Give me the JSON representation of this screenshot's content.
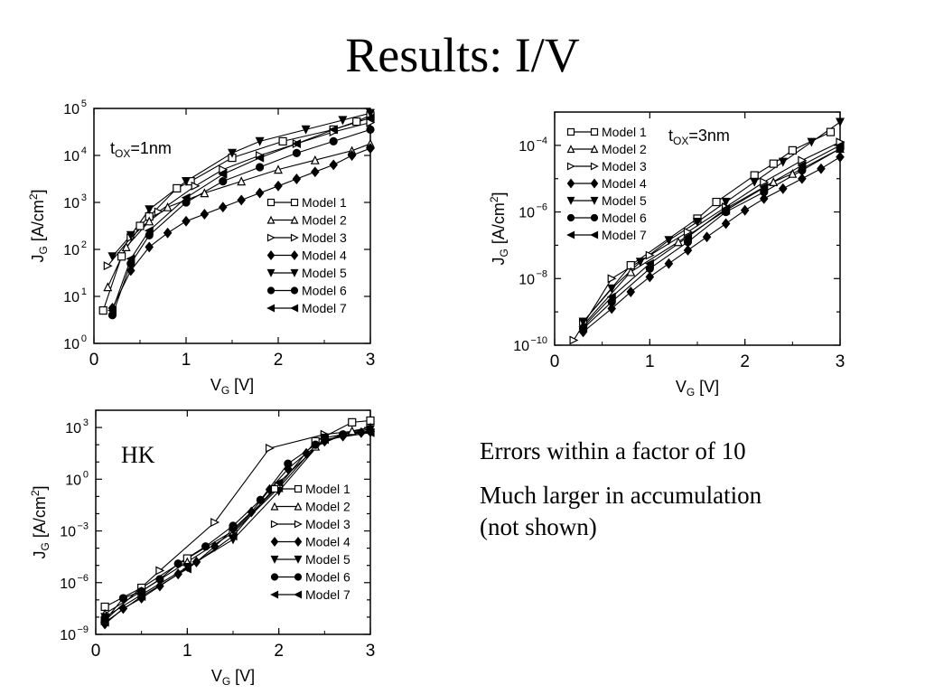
{
  "slide": {
    "title": "Results: I/V",
    "notes": [
      "Errors within a factor of 10",
      "Much larger in accumulation",
      "(not shown)"
    ]
  },
  "chart_data": [
    {
      "type": "line",
      "title": "",
      "annotation": "t_OX=1nm",
      "xlabel": "V_G [V]",
      "ylabel": "J_G [A/cm^2]",
      "xlim": [
        0,
        3
      ],
      "ylim_log10": [
        0,
        5
      ],
      "y_scale": "log",
      "x_ticks": [
        0,
        1,
        2,
        3
      ],
      "y_ticks_exp": [
        0,
        1,
        2,
        3,
        4,
        5
      ],
      "legend_position": "center-right",
      "series": [
        {
          "name": "Model 1",
          "marker": "square-open",
          "x": [
            0.1,
            0.3,
            0.5,
            0.6,
            0.9,
            1.05,
            1.5,
            2.05,
            2.6,
            2.85,
            3.0
          ],
          "y_log10": [
            0.7,
            1.85,
            2.5,
            2.7,
            3.3,
            3.45,
            3.95,
            4.3,
            4.55,
            4.72,
            4.85
          ]
        },
        {
          "name": "Model 2",
          "marker": "triangle-up-open",
          "x": [
            0.15,
            0.35,
            0.6,
            0.8,
            1.2,
            1.6,
            2.0,
            2.4,
            2.8,
            3.0
          ],
          "y_log10": [
            1.2,
            2.05,
            2.6,
            2.9,
            3.2,
            3.45,
            3.7,
            3.9,
            4.1,
            4.25
          ]
        },
        {
          "name": "Model 3",
          "marker": "triangle-right-open",
          "x": [
            0.15,
            0.4,
            0.7,
            1.1,
            1.4,
            1.8,
            2.2,
            2.6,
            3.0
          ],
          "y_log10": [
            1.65,
            2.25,
            2.8,
            3.35,
            3.7,
            4.0,
            4.25,
            4.5,
            4.7
          ]
        },
        {
          "name": "Model 4",
          "marker": "diamond-filled",
          "x": [
            0.2,
            0.4,
            0.6,
            0.8,
            1.0,
            1.2,
            1.4,
            1.6,
            1.8,
            2.0,
            2.2,
            2.4,
            2.6,
            2.8,
            3.0
          ],
          "y_log10": [
            0.75,
            1.55,
            2.05,
            2.35,
            2.6,
            2.75,
            2.9,
            3.05,
            3.2,
            3.35,
            3.5,
            3.65,
            3.8,
            4.0,
            4.15
          ]
        },
        {
          "name": "Model 5",
          "marker": "triangle-down-filled",
          "x": [
            0.2,
            0.4,
            0.6,
            1.0,
            1.5,
            1.8,
            2.3,
            2.7,
            3.0
          ],
          "y_log10": [
            1.85,
            2.3,
            2.85,
            3.45,
            4.05,
            4.3,
            4.55,
            4.75,
            4.9
          ]
        },
        {
          "name": "Model 6",
          "marker": "circle-filled",
          "x": [
            0.2,
            0.4,
            0.6,
            1.0,
            1.4,
            1.8,
            2.2,
            2.6,
            3.0
          ],
          "y_log10": [
            0.6,
            1.7,
            2.3,
            3.0,
            3.45,
            3.75,
            4.05,
            4.3,
            4.55
          ]
        },
        {
          "name": "Model 7",
          "marker": "triangle-left-filled",
          "x": [
            0.2,
            0.4,
            0.6,
            1.0,
            1.4,
            1.8,
            2.2,
            2.6,
            3.0
          ],
          "y_log10": [
            0.7,
            1.8,
            2.4,
            3.1,
            3.6,
            3.95,
            4.25,
            4.55,
            4.8
          ]
        }
      ]
    },
    {
      "type": "line",
      "title": "",
      "annotation": "t_OX=3nm",
      "xlabel": "V_G [V]",
      "ylabel": "J_G [A/cm^2]",
      "xlim": [
        0,
        3
      ],
      "ylim_log10": [
        -10,
        -3
      ],
      "y_scale": "log",
      "x_ticks": [
        0,
        1,
        2,
        3
      ],
      "y_ticks_exp": [
        -10,
        -8,
        -6,
        -4
      ],
      "legend_position": "top-left",
      "series": [
        {
          "name": "Model 1",
          "marker": "square-open",
          "x": [
            0.3,
            0.8,
            1.5,
            1.7,
            2.1,
            2.3,
            2.5,
            2.9
          ],
          "y_log10": [
            -9.3,
            -7.6,
            -6.2,
            -5.7,
            -4.9,
            -4.55,
            -4.15,
            -3.6
          ]
        },
        {
          "name": "Model 2",
          "marker": "triangle-up-open",
          "x": [
            0.3,
            0.8,
            1.3,
            1.8,
            2.3,
            2.5,
            3.0
          ],
          "y_log10": [
            -9.4,
            -7.8,
            -6.9,
            -5.95,
            -5.1,
            -4.85,
            -4.1
          ]
        },
        {
          "name": "Model 3",
          "marker": "triangle-right-open",
          "x": [
            0.2,
            0.6,
            1.0,
            1.4,
            1.8,
            2.2,
            2.6,
            3.0
          ],
          "y_log10": [
            -9.85,
            -8.0,
            -7.3,
            -6.6,
            -5.85,
            -5.1,
            -4.45,
            -3.9
          ]
        },
        {
          "name": "Model 4",
          "marker": "diamond-filled",
          "x": [
            0.3,
            0.6,
            0.8,
            1.0,
            1.2,
            1.4,
            1.6,
            1.8,
            2.0,
            2.2,
            2.4,
            2.6,
            2.8,
            3.0
          ],
          "y_log10": [
            -9.6,
            -8.9,
            -8.4,
            -7.95,
            -7.55,
            -7.15,
            -6.75,
            -6.35,
            -5.95,
            -5.6,
            -5.3,
            -5.0,
            -4.7,
            -4.35
          ]
        },
        {
          "name": "Model 5",
          "marker": "triangle-down-filled",
          "x": [
            0.3,
            0.6,
            0.9,
            1.2,
            1.5,
            1.8,
            2.1,
            2.4,
            2.7,
            3.0
          ],
          "y_log10": [
            -9.3,
            -8.3,
            -7.5,
            -6.85,
            -6.3,
            -5.7,
            -5.1,
            -4.5,
            -3.9,
            -3.3
          ]
        },
        {
          "name": "Model 6",
          "marker": "circle-filled",
          "x": [
            0.3,
            0.6,
            1.0,
            1.4,
            1.8,
            2.2,
            2.6,
            3.0
          ],
          "y_log10": [
            -9.5,
            -8.7,
            -7.7,
            -6.9,
            -6.0,
            -5.4,
            -4.75,
            -4.1
          ]
        },
        {
          "name": "Model 7",
          "marker": "triangle-left-filled",
          "x": [
            0.3,
            0.6,
            1.0,
            1.4,
            1.8,
            2.2,
            2.6,
            3.0
          ],
          "y_log10": [
            -9.45,
            -8.55,
            -7.55,
            -6.75,
            -5.9,
            -5.25,
            -4.6,
            -4.0
          ]
        }
      ]
    },
    {
      "type": "line",
      "title": "",
      "annotation": "HK",
      "xlabel": "V_G [V]",
      "ylabel": "J_G [A/cm^2]",
      "xlim": [
        0,
        3
      ],
      "ylim_log10": [
        -9,
        4
      ],
      "y_scale": "log",
      "x_ticks": [
        0,
        1,
        2,
        3
      ],
      "y_ticks_exp": [
        -9,
        -6,
        -3,
        0,
        3
      ],
      "legend_position": "center-right",
      "series": [
        {
          "name": "Model 1",
          "marker": "square-open",
          "x": [
            0.1,
            0.5,
            1.0,
            1.5,
            2.0,
            2.4,
            2.8,
            3.0
          ],
          "y_log10": [
            -7.4,
            -6.3,
            -4.6,
            -3.0,
            -0.4,
            2.2,
            3.3,
            3.4
          ]
        },
        {
          "name": "Model 2",
          "marker": "triangle-up-open",
          "x": [
            0.1,
            0.5,
            1.0,
            1.5,
            2.0,
            2.4,
            2.8,
            3.0
          ],
          "y_log10": [
            -7.8,
            -6.5,
            -4.8,
            -3.1,
            -0.5,
            1.9,
            2.8,
            3.0
          ]
        },
        {
          "name": "Model 3",
          "marker": "triangle-right-open",
          "x": [
            0.1,
            0.7,
            1.3,
            1.9,
            2.5,
            3.0
          ],
          "y_log10": [
            -8.2,
            -5.3,
            -2.5,
            1.8,
            2.6,
            2.9
          ]
        },
        {
          "name": "Model 4",
          "marker": "diamond-filled",
          "x": [
            0.1,
            0.3,
            0.5,
            0.7,
            0.9,
            1.1,
            1.3,
            1.5,
            1.7,
            1.9,
            2.1,
            2.3,
            2.5,
            2.7,
            2.9,
            3.0
          ],
          "y_log10": [
            -8.4,
            -7.5,
            -6.9,
            -6.2,
            -5.5,
            -4.8,
            -3.9,
            -2.9,
            -1.9,
            -0.6,
            0.6,
            1.5,
            2.2,
            2.5,
            2.7,
            2.75
          ]
        },
        {
          "name": "Model 5",
          "marker": "triangle-down-filled",
          "x": [
            0.1,
            0.5,
            1.0,
            1.5,
            2.0,
            2.5,
            3.0
          ],
          "y_log10": [
            -8.0,
            -6.7,
            -5.1,
            -3.5,
            -0.7,
            2.4,
            2.9
          ]
        },
        {
          "name": "Model 6",
          "marker": "circle-filled",
          "x": [
            0.1,
            0.3,
            0.5,
            0.7,
            0.9,
            1.2,
            1.5,
            1.8,
            2.1,
            2.4,
            2.7,
            3.0
          ],
          "y_log10": [
            -8.2,
            -6.9,
            -6.5,
            -5.8,
            -4.9,
            -3.9,
            -2.7,
            -1.2,
            0.9,
            2.0,
            2.6,
            2.8
          ]
        },
        {
          "name": "Model 7",
          "marker": "triangle-left-filled",
          "x": [
            0.1,
            0.5,
            1.0,
            1.5,
            2.0,
            2.5,
            3.0
          ],
          "y_log10": [
            -8.3,
            -6.8,
            -5.2,
            -3.3,
            -0.2,
            2.3,
            2.7
          ]
        }
      ]
    }
  ]
}
